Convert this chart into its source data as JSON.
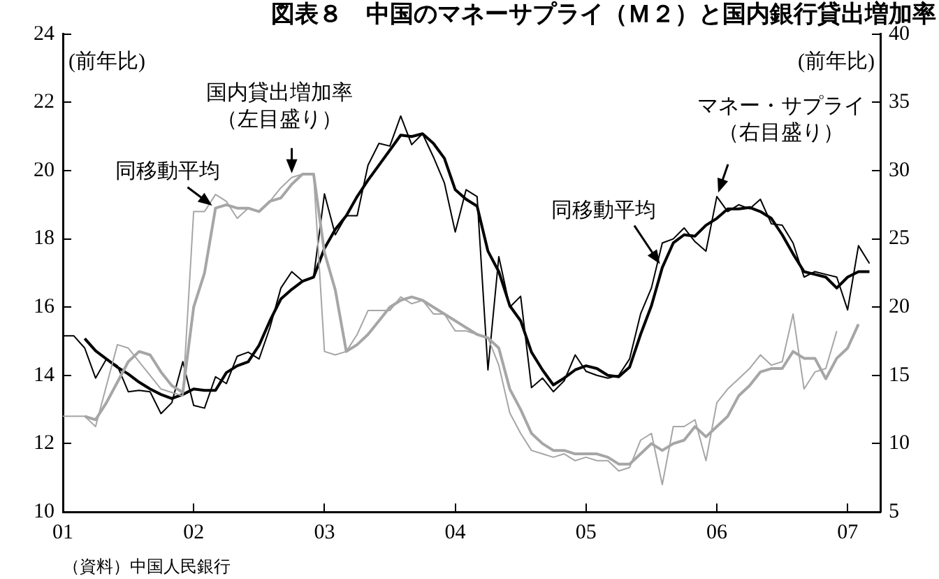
{
  "chart_data": {
    "type": "line",
    "title": "図表８　中国のマネーサプライ（Ｍ２）と国内銀行貸出増加率",
    "ylabel": "(前年比)",
    "y2label": "(前年比)",
    "annotations": [
      {
        "text": "国内貸出増加率（左目盛り）",
        "x": 2002.75,
        "y": 19.8
      },
      {
        "text": "同移動平均",
        "x": 2002.167,
        "y": 18.9
      },
      {
        "text": "マネー・サプライ（右目盛り）",
        "x": 2006.0,
        "y": 19.24
      },
      {
        "text": "同移動平均",
        "x": 2005.583,
        "y": 17.16
      },
      "（資料）中国人民銀行"
    ],
    "x": [
      2001.0,
      2001.083,
      2001.167,
      2001.25,
      2001.333,
      2001.417,
      2001.5,
      2001.583,
      2001.667,
      2001.75,
      2001.833,
      2001.917,
      2002.0,
      2002.083,
      2002.167,
      2002.25,
      2002.333,
      2002.417,
      2002.5,
      2002.583,
      2002.667,
      2002.75,
      2002.833,
      2002.917,
      2003.0,
      2003.083,
      2003.167,
      2003.25,
      2003.333,
      2003.417,
      2003.5,
      2003.583,
      2003.667,
      2003.75,
      2003.833,
      2003.917,
      2004.0,
      2004.083,
      2004.167,
      2004.25,
      2004.333,
      2004.417,
      2004.5,
      2004.583,
      2004.667,
      2004.75,
      2004.833,
      2004.917,
      2005.0,
      2005.083,
      2005.167,
      2005.25,
      2005.333,
      2005.417,
      2005.5,
      2005.583,
      2005.667,
      2005.75,
      2005.833,
      2005.917,
      2006.0,
      2006.083,
      2006.167,
      2006.25,
      2006.333,
      2006.417,
      2006.5,
      2006.583,
      2006.667,
      2006.75,
      2006.833,
      2006.917,
      2007.0,
      2007.083,
      2007.167
    ],
    "series": [
      {
        "color": "#a6a6a6",
        "values": [
          12.8,
          12.8,
          12.8,
          12.5,
          13.7,
          14.9,
          14.8,
          14.4,
          14.0,
          13.6,
          13.5,
          13.4,
          18.8,
          18.8,
          19.3,
          19.1,
          18.6,
          18.9,
          18.8,
          19.1,
          19.5,
          19.8,
          19.9,
          19.9,
          14.7,
          14.6,
          14.7,
          15.2,
          15.9,
          15.9,
          15.9,
          16.3,
          16.1,
          16.2,
          15.8,
          15.8,
          15.3,
          15.3,
          15.2,
          15.1,
          14.3,
          12.9,
          12.3,
          11.8,
          11.7,
          11.6,
          11.7,
          11.5,
          11.6,
          11.5,
          11.5,
          11.2,
          11.3,
          12.1,
          12.3,
          10.8,
          12.5,
          12.5,
          12.7,
          11.5,
          13.2,
          13.6,
          13.9,
          14.2,
          14.6,
          14.3,
          14.4,
          15.8,
          13.6,
          14.1,
          14.2,
          15.3,
          null,
          null,
          null
        ]
      },
      {
        "color": "#a6a6a6",
        "values": [
          null,
          null,
          12.8,
          12.7,
          13.2,
          13.8,
          14.4,
          14.7,
          14.6,
          14.1,
          13.7,
          13.5,
          16.0,
          17.0,
          18.9,
          19.0,
          18.9,
          18.9,
          18.8,
          19.1,
          19.2,
          19.6,
          19.9,
          19.9,
          17.6,
          16.5,
          14.7,
          14.9,
          15.2,
          15.6,
          16.0,
          16.2,
          16.3,
          16.2,
          16.0,
          15.8,
          15.6,
          15.4,
          15.2,
          15.1,
          14.8,
          13.6,
          13.0,
          12.3,
          12.0,
          11.8,
          11.8,
          11.7,
          11.7,
          11.7,
          11.6,
          11.4,
          11.4,
          11.7,
          12.0,
          11.8,
          12.0,
          12.1,
          12.5,
          12.2,
          12.5,
          12.8,
          13.4,
          13.7,
          14.1,
          14.2,
          14.2,
          14.7,
          14.5,
          14.5,
          13.9,
          14.5,
          14.8,
          15.5,
          null
        ]
      },
      {
        "color": "#000000",
        "axis": "y2",
        "values": [
          17.9,
          17.9,
          17.0,
          14.8,
          16.2,
          15.7,
          13.8,
          13.9,
          13.8,
          12.2,
          13.0,
          16.0,
          12.8,
          12.6,
          14.9,
          14.4,
          16.4,
          16.7,
          16.2,
          18.5,
          21.4,
          22.6,
          21.9,
          22.2,
          28.3,
          25.3,
          26.7,
          26.7,
          30.4,
          32.0,
          31.8,
          34.0,
          31.9,
          32.7,
          31.0,
          29.1,
          25.5,
          28.6,
          28.1,
          15.4,
          23.7,
          20.0,
          20.8,
          14.1,
          14.8,
          13.8,
          14.6,
          16.5,
          15.3,
          15.0,
          14.8,
          15.0,
          16.2,
          19.5,
          21.4,
          24.7,
          25.0,
          25.8,
          24.8,
          24.1,
          28.1,
          27.0,
          27.5,
          27.2,
          27.9,
          26.1,
          26.0,
          24.7,
          22.2,
          22.6,
          22.4,
          22.2,
          19.8,
          24.5,
          23.2
        ]
      },
      {
        "color": "#000000",
        "axis": "y2",
        "values": [
          null,
          null,
          17.7,
          16.8,
          16.2,
          15.6,
          15.1,
          14.5,
          14.0,
          13.6,
          13.3,
          13.6,
          14.0,
          13.9,
          13.9,
          15.2,
          15.7,
          16.0,
          17.2,
          19.0,
          20.6,
          21.3,
          21.9,
          22.2,
          24.3,
          25.7,
          26.7,
          28.1,
          29.3,
          30.4,
          31.5,
          32.6,
          32.5,
          32.7,
          32.0,
          30.9,
          28.6,
          27.9,
          27.4,
          24.1,
          22.6,
          20.1,
          19.0,
          16.7,
          15.4,
          14.3,
          14.8,
          15.4,
          15.7,
          15.5,
          15.0,
          14.9,
          15.6,
          18.0,
          20.1,
          22.9,
          24.7,
          25.3,
          25.2,
          26.0,
          26.5,
          27.2,
          27.2,
          27.3,
          27.0,
          26.5,
          25.3,
          23.9,
          22.6,
          22.4,
          22.2,
          21.4,
          22.2,
          22.6,
          22.6
        ]
      }
    ],
    "xlim": [
      2001,
      2007.25
    ],
    "xticks": [
      {
        "value": 2001,
        "label": "01"
      },
      {
        "value": 2002,
        "label": "02"
      },
      {
        "value": 2003,
        "label": "03"
      },
      {
        "value": 2004,
        "label": "04"
      },
      {
        "value": 2005,
        "label": "05"
      },
      {
        "value": 2006,
        "label": "06"
      },
      {
        "value": 2007,
        "label": "07"
      }
    ],
    "ylim": [
      10,
      24
    ],
    "yticks": [
      10,
      12,
      14,
      16,
      18,
      20,
      22,
      24
    ],
    "y2lim": [
      5,
      40
    ],
    "y2ticks": [
      5,
      10,
      15,
      20,
      25,
      30,
      35,
      40
    ],
    "grid": false,
    "legend": false,
    "marker": "none",
    "line_style": "solid"
  }
}
